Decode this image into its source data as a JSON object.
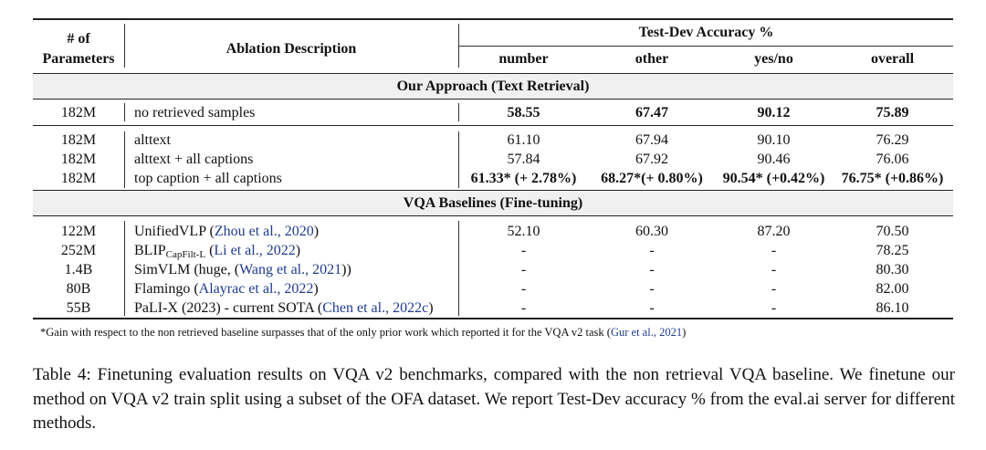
{
  "header": {
    "params_line1": "# of",
    "params_line2": "Parameters",
    "desc": "Ablation Description",
    "group": "Test-Dev Accuracy %",
    "number": "number",
    "other": "other",
    "yesno": "yes/no",
    "overall": "overall"
  },
  "sections": {
    "approach": "Our Approach (Text Retrieval)",
    "baselines": "VQA Baselines (Fine-tuning)"
  },
  "rows": [
    {
      "params": "182M",
      "desc": "no retrieved samples",
      "number": "58.55",
      "other": "67.47",
      "yesno": "90.12",
      "overall": "75.89"
    },
    {
      "params": "182M",
      "desc": "alttext",
      "number": "61.10",
      "other": "67.94",
      "yesno": "90.10",
      "overall": "76.29"
    },
    {
      "params": "182M",
      "desc": "alttext + all captions",
      "number": "57.84",
      "other": "67.92",
      "yesno": "90.46",
      "overall": "76.06"
    },
    {
      "params": "182M",
      "desc": "top caption + all captions",
      "number": "61.33* (+ 2.78%)",
      "other": "68.27*(+ 0.80%)",
      "yesno": "90.54* (+0.42%)",
      "overall": "76.75* (+0.86%)"
    },
    {
      "params": "122M",
      "desc_main": "UnifiedVLP (",
      "desc_cite": "Zhou et al., 2020",
      "desc_end": ")",
      "number": "52.10",
      "other": "60.30",
      "yesno": "87.20",
      "overall": "70.50"
    },
    {
      "params": "252M",
      "desc_main": "BLIP",
      "desc_sub": "CapFilt-L",
      "desc_mid": " (",
      "desc_cite": "Li et al., 2022",
      "desc_end": ")",
      "number": "-",
      "other": "-",
      "yesno": "-",
      "overall": "78.25"
    },
    {
      "params": "1.4B",
      "desc_main": "SimVLM (huge, (",
      "desc_cite": "Wang et al., 2021",
      "desc_end": "))",
      "number": "-",
      "other": "-",
      "yesno": "-",
      "overall": "80.30"
    },
    {
      "params": "80B",
      "desc_main": "Flamingo (",
      "desc_cite": "Alayrac et al., 2022",
      "desc_end": ")",
      "number": "-",
      "other": "-",
      "yesno": "-",
      "overall": "82.00"
    },
    {
      "params": "55B",
      "desc_main": "PaLI-X (2023) - current SOTA (",
      "desc_cite": "Chen et al., 2022c",
      "desc_end": ")",
      "number": "-",
      "other": "-",
      "yesno": "-",
      "overall": "86.10"
    }
  ],
  "footnote": {
    "text": "*Gain with respect to the non retrieved baseline surpasses that of the only prior work which reported it for the VQA v2 task (",
    "cite": "Gur et al., 2021",
    "end": ")"
  },
  "caption": "Table 4: Finetuning evaluation results on VQA v2 benchmarks, compared with the non retrieval VQA baseline. We finetune our method on VQA v2 train split using a subset of the OFA dataset. We report Test-Dev accuracy % from the eval.ai server for different methods."
}
